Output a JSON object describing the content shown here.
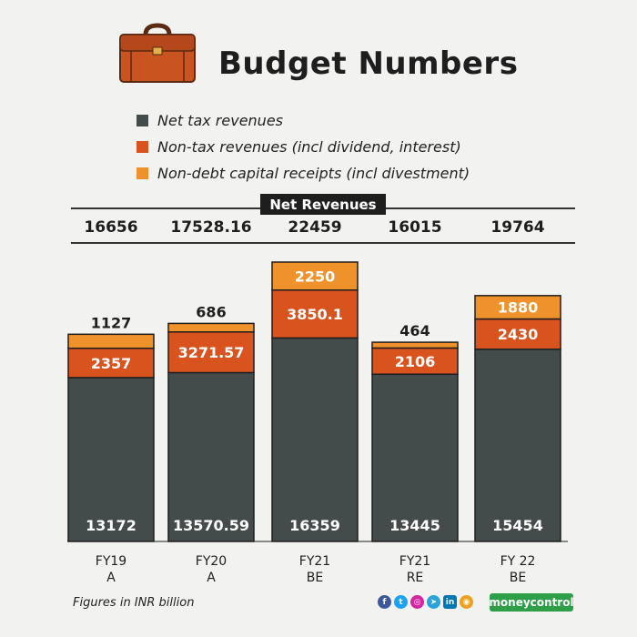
{
  "header": {
    "title": "Budget Numbers"
  },
  "colors": {
    "net_tax": "#434c4a",
    "non_tax": "#d9531f",
    "non_debt": "#f0922b",
    "ink": "#1e1e1e"
  },
  "legend": {
    "items": [
      {
        "label": "Net tax revenues",
        "color": "#434c4a"
      },
      {
        "label": "Non-tax revenues (incl dividend, interest)",
        "color": "#d9531f"
      },
      {
        "label": "Non-debt capital receipts (incl divestment)",
        "color": "#f0922b"
      }
    ]
  },
  "net_revenues_label": "Net Revenues",
  "chart_data": {
    "type": "bar",
    "stacked": true,
    "categories": [
      "FY19\nA",
      "FY20\nA",
      "FY21\nBE",
      "FY21\nRE",
      "FY 22\nBE"
    ],
    "category_lines": [
      [
        "FY19",
        "A"
      ],
      [
        "FY20",
        "A"
      ],
      [
        "FY21",
        "BE"
      ],
      [
        "FY21",
        "RE"
      ],
      [
        "FY 22",
        "BE"
      ]
    ],
    "series": [
      {
        "name": "Net tax revenues",
        "values": [
          "13172",
          "13570.59",
          "16359",
          "13445",
          "15454"
        ]
      },
      {
        "name": "Non-tax revenues (incl dividend, interest)",
        "values": [
          "2357",
          "3271.57",
          "3850.1",
          "2106",
          "2430"
        ]
      },
      {
        "name": "Non-debt capital receipts (incl divestment)",
        "values": [
          "1127",
          "686",
          "2250",
          "464",
          "1880"
        ]
      }
    ],
    "totals": [
      "16656",
      "17528.16",
      "22459",
      "16015",
      "19764"
    ],
    "ylim": [
      0,
      22459
    ]
  },
  "footnote": "Figures in INR billion",
  "social_icons": [
    "facebook-icon",
    "twitter-icon",
    "instagram-icon",
    "telegram-icon",
    "linkedin-icon",
    "podcast-icon"
  ],
  "brand": "moneycontrol"
}
